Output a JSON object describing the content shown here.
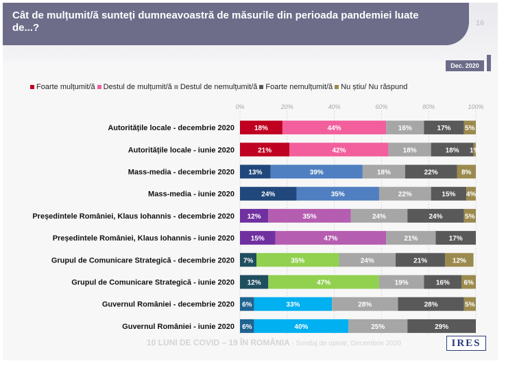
{
  "header": {
    "title": "Cât de mulțumit/ă sunteți dumneavoastră de măsurile din perioada pandemiei luate de...?",
    "page_number": "16",
    "date_badge": "Dec. 2020"
  },
  "footer": {
    "text": "10 LUNI DE COVID – 19 ÎN ROMÂNIA",
    "subtext": " - Sondaj de opinie, Decembrie 2020",
    "logo": "IRES"
  },
  "chart_data": {
    "type": "bar",
    "orientation": "horizontal",
    "stacked": true,
    "title": "",
    "xlabel": "",
    "ylabel": "",
    "xlim": [
      0,
      100
    ],
    "x_ticks": [
      "0%",
      "20%",
      "40%",
      "60%",
      "80%",
      "100%"
    ],
    "grid": true,
    "legend_position": "top",
    "categories": [
      "Autoritățile locale - decembrie 2020",
      "Autoritățile locale - iunie 2020",
      "Mass-media - decembrie 2020",
      "Mass-media - iunie 2020",
      "Președintele României, Klaus Iohannis - decembrie 2020",
      "Președintele României, Klaus Iohannis - iunie 2020",
      "Grupul de Comunicare Strategică - decembrie 2020",
      "Grupul de Comunicare Strategică - iunie 2020",
      "Guvernul României - decembrie 2020",
      "Guvernul României - iunie 2020"
    ],
    "series": [
      {
        "name": "Foarte mulțumit/ă",
        "values": [
          18,
          21,
          13,
          24,
          12,
          15,
          7,
          12,
          6,
          6
        ]
      },
      {
        "name": "Destul de mulțumit/ă",
        "values": [
          44,
          42,
          39,
          35,
          35,
          47,
          35,
          47,
          33,
          40
        ]
      },
      {
        "name": "Destul de nemulțumit/ă",
        "values": [
          16,
          18,
          18,
          22,
          24,
          21,
          24,
          19,
          28,
          25
        ]
      },
      {
        "name": "Foarte nemulțumit/ă",
        "values": [
          17,
          18,
          22,
          15,
          24,
          17,
          21,
          16,
          28,
          29
        ]
      },
      {
        "name": "Nu știu/ Nu răspund",
        "values": [
          5,
          1,
          8,
          4,
          5,
          0,
          12,
          6,
          5,
          0
        ]
      }
    ],
    "legend_colors": [
      "#c00020",
      "#f25f9c",
      "#a6a6a6",
      "#595959",
      "#9b8a4e"
    ],
    "row_colors": [
      [
        "#c00020",
        "#f25f9c",
        "#a6a6a6",
        "#595959",
        "#9b8a4e"
      ],
      [
        "#c00020",
        "#f25f9c",
        "#a6a6a6",
        "#595959",
        "#9b8a4e"
      ],
      [
        "#21487c",
        "#4f7fc0",
        "#a6a6a6",
        "#595959",
        "#9b8a4e"
      ],
      [
        "#21487c",
        "#4f7fc0",
        "#a6a6a6",
        "#595959",
        "#9b8a4e"
      ],
      [
        "#7030a0",
        "#b55db0",
        "#a6a6a6",
        "#595959",
        "#9b8a4e"
      ],
      [
        "#7030a0",
        "#b55db0",
        "#a6a6a6",
        "#595959",
        "#9b8a4e"
      ],
      [
        "#1f4e5f",
        "#92d050",
        "#a6a6a6",
        "#595959",
        "#9b8a4e"
      ],
      [
        "#1f4e5f",
        "#92d050",
        "#a6a6a6",
        "#595959",
        "#9b8a4e"
      ],
      [
        "#1f6391",
        "#00b0f0",
        "#a6a6a6",
        "#595959",
        "#9b8a4e"
      ],
      [
        "#1f6391",
        "#00b0f0",
        "#a6a6a6",
        "#595959",
        "#9b8a4e"
      ]
    ],
    "value_labels": [
      [
        "18%",
        "44%",
        "16%",
        "17%",
        "5%"
      ],
      [
        "21%",
        "42%",
        "18%",
        "18%",
        "1%"
      ],
      [
        "13%",
        "39%",
        "18%",
        "22%",
        "8%"
      ],
      [
        "24%",
        "35%",
        "22%",
        "15%",
        "4%"
      ],
      [
        "12%",
        "35%",
        "24%",
        "24%",
        "5%"
      ],
      [
        "15%",
        "47%",
        "21%",
        "17%",
        ""
      ],
      [
        "7%",
        "35%",
        "24%",
        "21%",
        "12%"
      ],
      [
        "12%",
        "47%",
        "19%",
        "16%",
        "6%"
      ],
      [
        "6%",
        "33%",
        "28%",
        "28%",
        "5%"
      ],
      [
        "6%",
        "40%",
        "25%",
        "29%",
        ""
      ]
    ]
  }
}
